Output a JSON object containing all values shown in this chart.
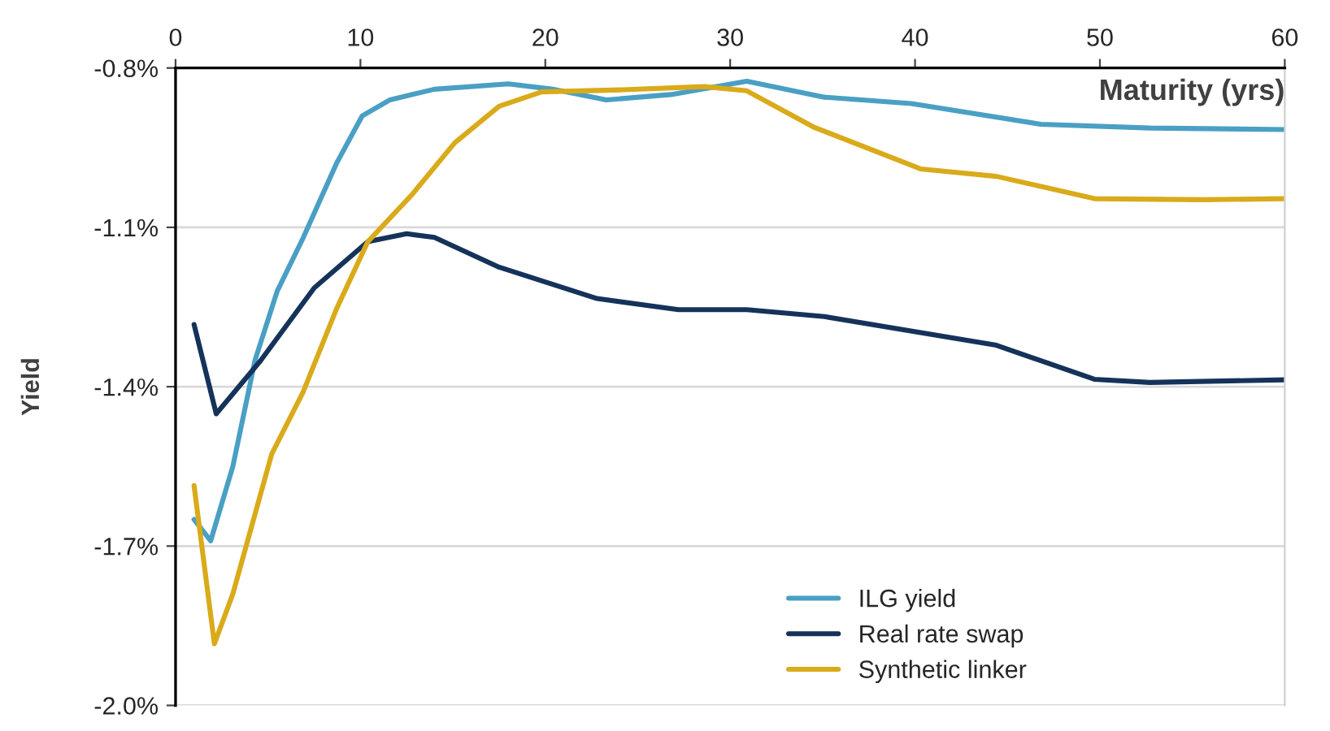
{
  "chart_data": {
    "type": "line",
    "xlabel": "Maturity (yrs)",
    "ylabel": "Yield",
    "xlim": [
      0,
      60
    ],
    "xticks": [
      0,
      10,
      20,
      30,
      40,
      50,
      60
    ],
    "ylim": [
      -2.0,
      -0.8
    ],
    "yticks": [
      {
        "value": -2.0,
        "label": "-2.0%"
      },
      {
        "value": -1.7,
        "label": "-1.7%"
      },
      {
        "value": -1.4,
        "label": "-1.4%"
      },
      {
        "value": -1.1,
        "label": "-1.1%"
      },
      {
        "value": -0.8,
        "label": "-0.8%"
      }
    ],
    "grid": "y",
    "legend": "bottom",
    "marker": "none",
    "line_style": "solid",
    "series": [
      {
        "name": "ILG yield",
        "color": "#4a9fc4",
        "x": [
          1.0,
          1.9,
          3.1,
          4.3,
          5.5,
          6.9,
          8.7,
          10.1,
          11.6,
          14,
          18,
          20.4,
          23.3,
          26.8,
          30.9,
          35.1,
          39.8,
          46.8,
          52.7,
          60
        ],
        "values": [
          -1.65,
          -1.69,
          -1.55,
          -1.35,
          -1.22,
          -1.12,
          -0.98,
          -0.89,
          -0.86,
          -0.84,
          -0.83,
          -0.84,
          -0.86,
          -0.85,
          -0.825,
          -0.855,
          -0.867,
          -0.906,
          -0.913,
          -0.916
        ]
      },
      {
        "name": "Real rate swap",
        "color": "#15335a",
        "x": [
          1.0,
          2.2,
          4.6,
          7.5,
          10.4,
          12.5,
          14,
          17.5,
          22.8,
          27.2,
          30.9,
          35.1,
          44.4,
          49.7,
          52.7,
          60
        ],
        "values": [
          -1.283,
          -1.451,
          -1.351,
          -1.214,
          -1.127,
          -1.112,
          -1.119,
          -1.175,
          -1.234,
          -1.255,
          -1.255,
          -1.268,
          -1.322,
          -1.386,
          -1.392,
          -1.387
        ]
      },
      {
        "name": "Synthetic linker",
        "color": "#d9aa1a",
        "x": [
          1.0,
          2.1,
          3.1,
          5.2,
          6.9,
          8.7,
          10.4,
          12.8,
          15.1,
          17.5,
          19.8,
          24.2,
          28.6,
          30.9,
          34.5,
          40.3,
          44.4,
          49.7,
          55.6,
          60
        ],
        "values": [
          -1.586,
          -1.884,
          -1.79,
          -1.527,
          -1.41,
          -1.254,
          -1.127,
          -1.038,
          -0.941,
          -0.872,
          -0.845,
          -0.841,
          -0.835,
          -0.843,
          -0.911,
          -0.99,
          -1.004,
          -1.046,
          -1.048,
          -1.046
        ]
      }
    ]
  }
}
